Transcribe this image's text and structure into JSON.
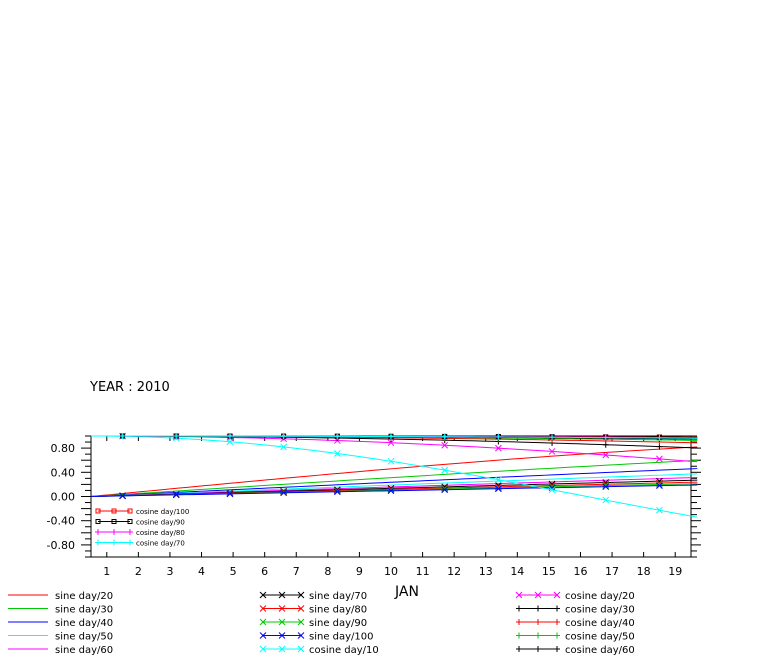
{
  "header": {
    "year_label": "YEAR : 2010"
  },
  "chart_data": {
    "type": "line",
    "title": "",
    "xlabel": "JAN",
    "ylabel": "",
    "x": [
      1,
      2,
      3,
      4,
      5,
      6,
      7,
      8,
      9,
      10,
      11,
      12,
      13,
      14,
      15,
      16,
      17,
      18,
      19
    ],
    "x_tick_labels": [
      "1",
      "2",
      "3",
      "4",
      "5",
      "6",
      "7",
      "8",
      "9",
      "10",
      "11",
      "12",
      "13",
      "14",
      "15",
      "16",
      "17",
      "18",
      "19"
    ],
    "y_tick_labels": [
      "0.80",
      "0.40",
      "0.00",
      "-0.40",
      "-0.80"
    ],
    "y_ticks": [
      0.8,
      0.4,
      0.0,
      -0.4,
      -0.8
    ],
    "xlim": [
      0.5,
      19.5
    ],
    "ylim": [
      -1.0,
      1.0
    ],
    "grid": false,
    "series": [
      {
        "name": "sine day/20",
        "func": "sin",
        "divisor": 20,
        "color": "#ff0000",
        "marker": "none"
      },
      {
        "name": "sine day/30",
        "func": "sin",
        "divisor": 30,
        "color": "#00c800",
        "marker": "none"
      },
      {
        "name": "sine day/40",
        "func": "sin",
        "divisor": 40,
        "color": "#0000ff",
        "marker": "none"
      },
      {
        "name": "sine day/50",
        "func": "sin",
        "divisor": 50,
        "color": "#00ffff",
        "marker": "none"
      },
      {
        "name": "sine day/60",
        "func": "sin",
        "divisor": 60,
        "color": "#ff00ff",
        "marker": "none"
      },
      {
        "name": "sine day/70",
        "func": "sin",
        "divisor": 70,
        "color": "#000000",
        "marker": "x"
      },
      {
        "name": "sine day/80",
        "func": "sin",
        "divisor": 80,
        "color": "#ff0000",
        "marker": "x"
      },
      {
        "name": "sine day/90",
        "func": "sin",
        "divisor": 90,
        "color": "#00c800",
        "marker": "x"
      },
      {
        "name": "sine day/100",
        "func": "sin",
        "divisor": 100,
        "color": "#0000ff",
        "marker": "x"
      },
      {
        "name": "cosine day/10",
        "func": "cos",
        "divisor": 10,
        "color": "#00ffff",
        "marker": "x"
      },
      {
        "name": "cosine day/20",
        "func": "cos",
        "divisor": 20,
        "color": "#ff00ff",
        "marker": "x"
      },
      {
        "name": "cosine day/30",
        "func": "cos",
        "divisor": 30,
        "color": "#000000",
        "marker": "plus"
      },
      {
        "name": "cosine day/40",
        "func": "cos",
        "divisor": 40,
        "color": "#ff0000",
        "marker": "plus"
      },
      {
        "name": "cosine day/50",
        "func": "cos",
        "divisor": 50,
        "color": "#00c800",
        "marker": "plus"
      },
      {
        "name": "cosine day/60",
        "func": "cos",
        "divisor": 60,
        "color": "#000000",
        "marker": "plus"
      },
      {
        "name": "cosine day/100",
        "func": "cos",
        "divisor": 100,
        "color": "#ff0000",
        "marker": "square"
      },
      {
        "name": "cosine day/90",
        "func": "cos",
        "divisor": 90,
        "color": "#000000",
        "marker": "square"
      },
      {
        "name": "cosine day/80",
        "func": "cos",
        "divisor": 80,
        "color": "#ff00ff",
        "marker": "plus"
      },
      {
        "name": "cosine day/70",
        "func": "cos",
        "divisor": 70,
        "color": "#00ffff",
        "marker": "plus"
      }
    ],
    "inset_legend": [
      "cosine day/100",
      "cosine day/90",
      "cosine day/80",
      "cosine day/70"
    ],
    "bottom_legend_columns": [
      [
        "sine day/20",
        "sine day/30",
        "sine day/40",
        "sine day/50",
        "sine day/60"
      ],
      [
        "sine day/70",
        "sine day/80",
        "sine day/90",
        "sine day/100",
        "cosine day/10"
      ],
      [
        "cosine day/20",
        "cosine day/30",
        "cosine day/40",
        "cosine day/50",
        "cosine day/60"
      ]
    ]
  }
}
